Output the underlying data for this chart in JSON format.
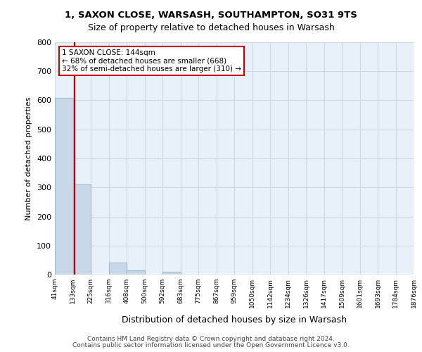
{
  "title_line1": "1, SAXON CLOSE, WARSASH, SOUTHAMPTON, SO31 9TS",
  "title_line2": "Size of property relative to detached houses in Warsash",
  "xlabel": "Distribution of detached houses by size in Warsash",
  "ylabel": "Number of detached properties",
  "footer_line1": "Contains HM Land Registry data © Crown copyright and database right 2024.",
  "footer_line2": "Contains public sector information licensed under the Open Government Licence v3.0.",
  "bin_labels": [
    "41sqm",
    "133sqm",
    "225sqm",
    "316sqm",
    "408sqm",
    "500sqm",
    "592sqm",
    "683sqm",
    "775sqm",
    "867sqm",
    "959sqm",
    "1050sqm",
    "1142sqm",
    "1234sqm",
    "1326sqm",
    "1417sqm",
    "1509sqm",
    "1601sqm",
    "1693sqm",
    "1784sqm",
    "1876sqm"
  ],
  "bar_heights": [
    608,
    310,
    0,
    42,
    15,
    0,
    10,
    0,
    0,
    0,
    0,
    0,
    0,
    0,
    0,
    0,
    0,
    0,
    0,
    0
  ],
  "bar_color": "#c8d8e8",
  "bar_edge_color": "#a0b8cc",
  "ylim": [
    0,
    800
  ],
  "yticks": [
    0,
    100,
    200,
    300,
    400,
    500,
    600,
    700,
    800
  ],
  "property_line_x": 1.08,
  "property_line_color": "#cc0000",
  "annotation_text_line1": "1 SAXON CLOSE: 144sqm",
  "annotation_text_line2": "← 68% of detached houses are smaller (668)",
  "annotation_text_line3": "32% of semi-detached houses are larger (310) →",
  "annotation_box_color": "#ffffff",
  "annotation_box_edge_color": "#cc0000",
  "grid_color": "#d0d8e0",
  "background_color": "#e8f0f8"
}
